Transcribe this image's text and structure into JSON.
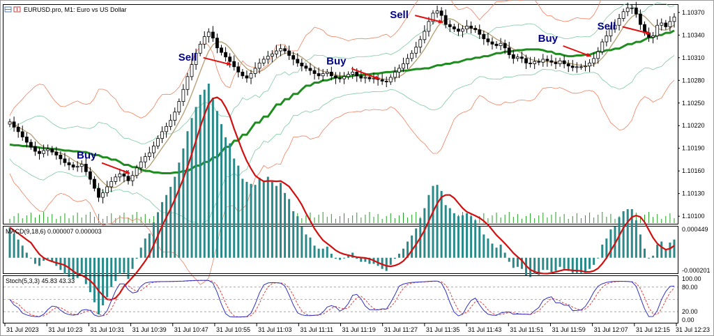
{
  "header": {
    "title": "EURUSD.pro, M1:  Euro vs US Dollar"
  },
  "colors": {
    "bull_fill": "#ffffff",
    "bear_fill": "#000000",
    "ma_slow": "#1f8c1f",
    "ma_fast": "#b8a27a",
    "bb_inner": "#7fc9a4",
    "bb_outer": "#f08060",
    "macd_hist": "#2a8a8a",
    "macd_signal": "#d01010",
    "stoch_main": "#3030c0",
    "stoch_signal": "#e04040",
    "volume": "#22a022",
    "arrow": "#e01010",
    "annotation": "#00008b"
  },
  "chart_data": [
    {
      "type": "candlestick",
      "symbol": "EURUSD.pro",
      "timeframe": "M1",
      "title": "EURUSD.pro, M1:  Euro vs US Dollar",
      "ylim": [
        1.1009,
        1.1038
      ],
      "y_ticks": [
        "1.10370",
        "1.10340",
        "1.10310",
        "1.10280",
        "1.10250",
        "1.10220",
        "1.10190",
        "1.10160",
        "1.10130",
        "1.10100"
      ],
      "x_ticks": [
        "31 Jul 2023",
        "31 Jul 10:23",
        "31 Jul 10:31",
        "31 Jul 10:39",
        "31 Jul 10:47",
        "31 Jul 10:55",
        "31 Jul 11:03",
        "31 Jul 11:11",
        "31 Jul 11:19",
        "31 Jul 11:27",
        "31 Jul 11:35",
        "31 Jul 11:43",
        "31 Jul 11:51",
        "31 Jul 11:59",
        "31 Jul 12:07",
        "31 Jul 12:15",
        "31 Jul 12:23"
      ],
      "close": [
        1.10225,
        1.10218,
        1.10212,
        1.10205,
        1.10198,
        1.10192,
        1.10186,
        1.10183,
        1.10187,
        1.10189,
        1.10185,
        1.10181,
        1.10176,
        1.10171,
        1.10168,
        1.10165,
        1.10166,
        1.10169,
        1.10159,
        1.10149,
        1.10137,
        1.10125,
        1.10131,
        1.10139,
        1.10146,
        1.10152,
        1.10156,
        1.10153,
        1.10147,
        1.10154,
        1.10164,
        1.10172,
        1.10179,
        1.10184,
        1.10193,
        1.10203,
        1.10212,
        1.10219,
        1.10227,
        1.10238,
        1.10252,
        1.10268,
        1.10285,
        1.10301,
        1.10316,
        1.10328,
        1.10338,
        1.10344,
        1.10336,
        1.10323,
        1.10317,
        1.10311,
        1.10305,
        1.10298,
        1.10291,
        1.10286,
        1.10283,
        1.10289,
        1.10296,
        1.10303,
        1.10308,
        1.10312,
        1.10315,
        1.10319,
        1.10322,
        1.10319,
        1.10313,
        1.10308,
        1.10303,
        1.10299,
        1.10296,
        1.10293,
        1.10289,
        1.10286,
        1.10289,
        1.10291,
        1.10286,
        1.10283,
        1.10282,
        1.10285,
        1.10288,
        1.10291,
        1.10286,
        1.10283,
        1.10284,
        1.10282,
        1.10283,
        1.10281,
        1.10279,
        1.10278,
        1.10284,
        1.10291,
        1.10296,
        1.10302,
        1.10309,
        1.10316,
        1.10324,
        1.10334,
        1.10345,
        1.10358,
        1.10369,
        1.10372,
        1.10366,
        1.10354,
        1.10351,
        1.10348,
        1.10345,
        1.10348,
        1.10352,
        1.10349,
        1.10347,
        1.10341,
        1.10335,
        1.10331,
        1.10328,
        1.10326,
        1.10329,
        1.10323,
        1.10314,
        1.10309,
        1.10311,
        1.10309,
        1.10303,
        1.10302,
        1.10305,
        1.10304,
        1.10308,
        1.10306,
        1.10304,
        1.10302,
        1.10306,
        1.10302,
        1.10299,
        1.10297,
        1.10298,
        1.10298,
        1.10299,
        1.10303,
        1.10309,
        1.10318,
        1.10331,
        1.10339,
        1.10348,
        1.10353,
        1.10362,
        1.10371,
        1.10376,
        1.10376,
        1.10368,
        1.10354,
        1.10343,
        1.10337,
        1.10339,
        1.10353,
        1.10356,
        1.10351,
        1.10358,
        1.10364
      ],
      "ma_slow": [
        1.10195,
        1.10194,
        1.10193,
        1.10192,
        1.10191,
        1.1019,
        1.10189,
        1.10188,
        1.10187,
        1.10186,
        1.10185,
        1.10183,
        1.10181,
        1.10178,
        1.10175,
        1.10172,
        1.10168,
        1.10165,
        1.10162,
        1.1016,
        1.10158,
        1.10157,
        1.10157,
        1.10158,
        1.1016,
        1.10163,
        1.10167,
        1.10172,
        1.10178,
        1.10185,
        1.10192,
        1.102,
        1.10208,
        1.10216,
        1.10224,
        1.10232,
        1.1024,
        1.10248,
        1.10255,
        1.10262,
        1.10268,
        1.10273,
        1.10277,
        1.1028,
        1.10282,
        1.10284,
        1.10285,
        1.10286,
        1.10287,
        1.10288,
        1.10289,
        1.1029,
        1.10291,
        1.10292,
        1.10293,
        1.10294,
        1.10295,
        1.10296,
        1.10298,
        1.103,
        1.10302,
        1.10304,
        1.10306,
        1.10308,
        1.1031,
        1.10312,
        1.10314,
        1.10316,
        1.10318,
        1.10319,
        1.1032,
        1.10321,
        1.10321,
        1.1032,
        1.10318,
        1.10315,
        1.10313,
        1.10312,
        1.10313,
        1.10314,
        1.10316,
        1.10318,
        1.1032,
        1.10322,
        1.10325,
        1.10328,
        1.10331,
        1.10334,
        1.10337,
        1.1034,
        1.10343,
        1.10346
      ],
      "annotations": [
        {
          "label": "Sell",
          "signal": "sell",
          "time": "31 Jul 10:55"
        },
        {
          "label": "Buy",
          "signal": "buy",
          "time": "31 Jul 10:39"
        },
        {
          "label": "Buy",
          "signal": "buy",
          "time": "31 Jul 11:27"
        },
        {
          "label": "Sell",
          "signal": "sell",
          "time": "31 Jul 11:35"
        },
        {
          "label": "Buy",
          "signal": "buy",
          "time": "31 Jul 12:07"
        },
        {
          "label": "Sell",
          "signal": "sell",
          "time": "31 Jul 12:15"
        }
      ]
    },
    {
      "type": "bar",
      "title": "MACD(9,18,6) 0.000007 0.000003",
      "indicator": "MACD",
      "params": "9,18,6",
      "main_value": "0.000007",
      "signal_value": "0.000003",
      "ylim": [
        -0.000201,
        0.000449
      ],
      "y_ticks": [
        "0.000449",
        "-0.000201"
      ]
    },
    {
      "type": "line",
      "title": "Stoch(5,3,3) 45.83 43.33",
      "indicator": "Stoch",
      "params": "5,3,3",
      "main_value": "45.83",
      "signal_value": "43.33",
      "ylim": [
        0,
        100
      ],
      "y_ticks": [
        "100.00",
        "80.00",
        "20.00",
        "0.00"
      ],
      "levels": [
        80,
        50,
        20
      ]
    }
  ]
}
